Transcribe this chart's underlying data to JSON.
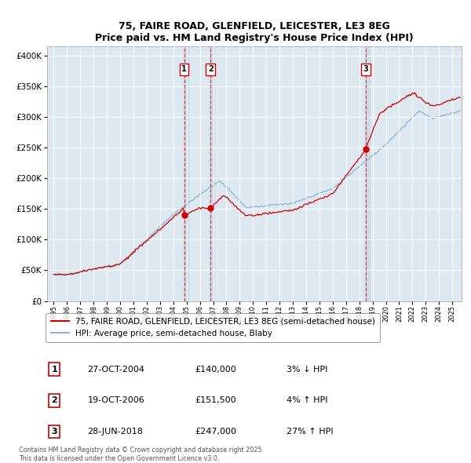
{
  "title_line1": "75, FAIRE ROAD, GLENFIELD, LEICESTER, LE3 8EG",
  "title_line2": "Price paid vs. HM Land Registry's House Price Index (HPI)",
  "ylabel_ticks": [
    "£0",
    "£50K",
    "£100K",
    "£150K",
    "£200K",
    "£250K",
    "£300K",
    "£350K",
    "£400K"
  ],
  "ylabel_vals": [
    0,
    50000,
    100000,
    150000,
    200000,
    250000,
    300000,
    350000,
    400000
  ],
  "xlim": [
    1994.5,
    2025.7
  ],
  "ylim": [
    0,
    415000
  ],
  "hpi_color": "#8ab4d4",
  "price_color": "#cc0000",
  "bg_color": "#dde8f0",
  "shade_color": "#c5d8e8",
  "transaction_years": [
    2004.82,
    2006.8,
    2018.49
  ],
  "transaction_prices": [
    140000,
    151500,
    247000
  ],
  "transaction_labels": [
    "1",
    "2",
    "3"
  ],
  "transaction_dates": [
    "27-OCT-2004",
    "19-OCT-2006",
    "28-JUN-2018"
  ],
  "transaction_amounts": [
    "£140,000",
    "£151,500",
    "£247,000"
  ],
  "transaction_hpi_diff": [
    "3% ↓ HPI",
    "4% ↑ HPI",
    "27% ↑ HPI"
  ],
  "legend_label_red": "75, FAIRE ROAD, GLENFIELD, LEICESTER, LE3 8EG (semi-detached house)",
  "legend_label_blue": "HPI: Average price, semi-detached house, Blaby",
  "footer_line1": "Contains HM Land Registry data © Crown copyright and database right 2025.",
  "footer_line2": "This data is licensed under the Open Government Licence v3.0."
}
